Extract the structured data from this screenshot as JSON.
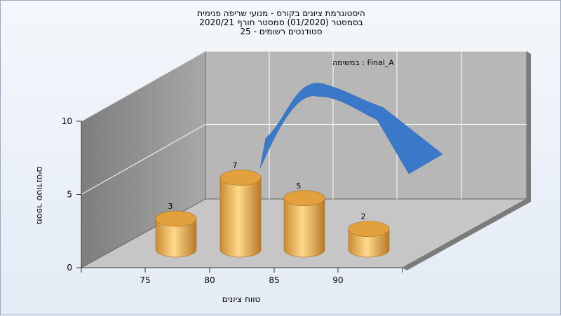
{
  "chart_data": {
    "type": "bar",
    "title_lines": [
      "היסטוגרמת ציונים בקורס - מנועי שריפה פנימית",
      "בסמסטר  (01/2020)  סמסטר חורף  2020/21",
      "סטודנטים רשומים - 25"
    ],
    "annotation": "Final_A : במשימה",
    "xlabel": "טווח ציונים",
    "ylabel": "מספר סטודנטים",
    "x_ticks": [
      "75",
      "80",
      "85",
      "90"
    ],
    "y_ticks": [
      "0",
      "5",
      "10"
    ],
    "ylim": [
      0,
      10
    ],
    "categories": [
      "75",
      "80",
      "85",
      "90"
    ],
    "values": [
      3,
      7,
      5,
      2
    ],
    "data_labels": [
      "3",
      "7",
      "5",
      "2"
    ],
    "series": [
      {
        "values": [
          3,
          7,
          5,
          2
        ],
        "shape": "cylinder",
        "color": "#f0b451"
      },
      {
        "type": "line",
        "style": "3d-ribbon",
        "values": [
          5.5,
          9.2,
          7.6,
          4.4
        ],
        "color": "#3a78c9"
      }
    ],
    "grid": true,
    "style": "3d"
  }
}
